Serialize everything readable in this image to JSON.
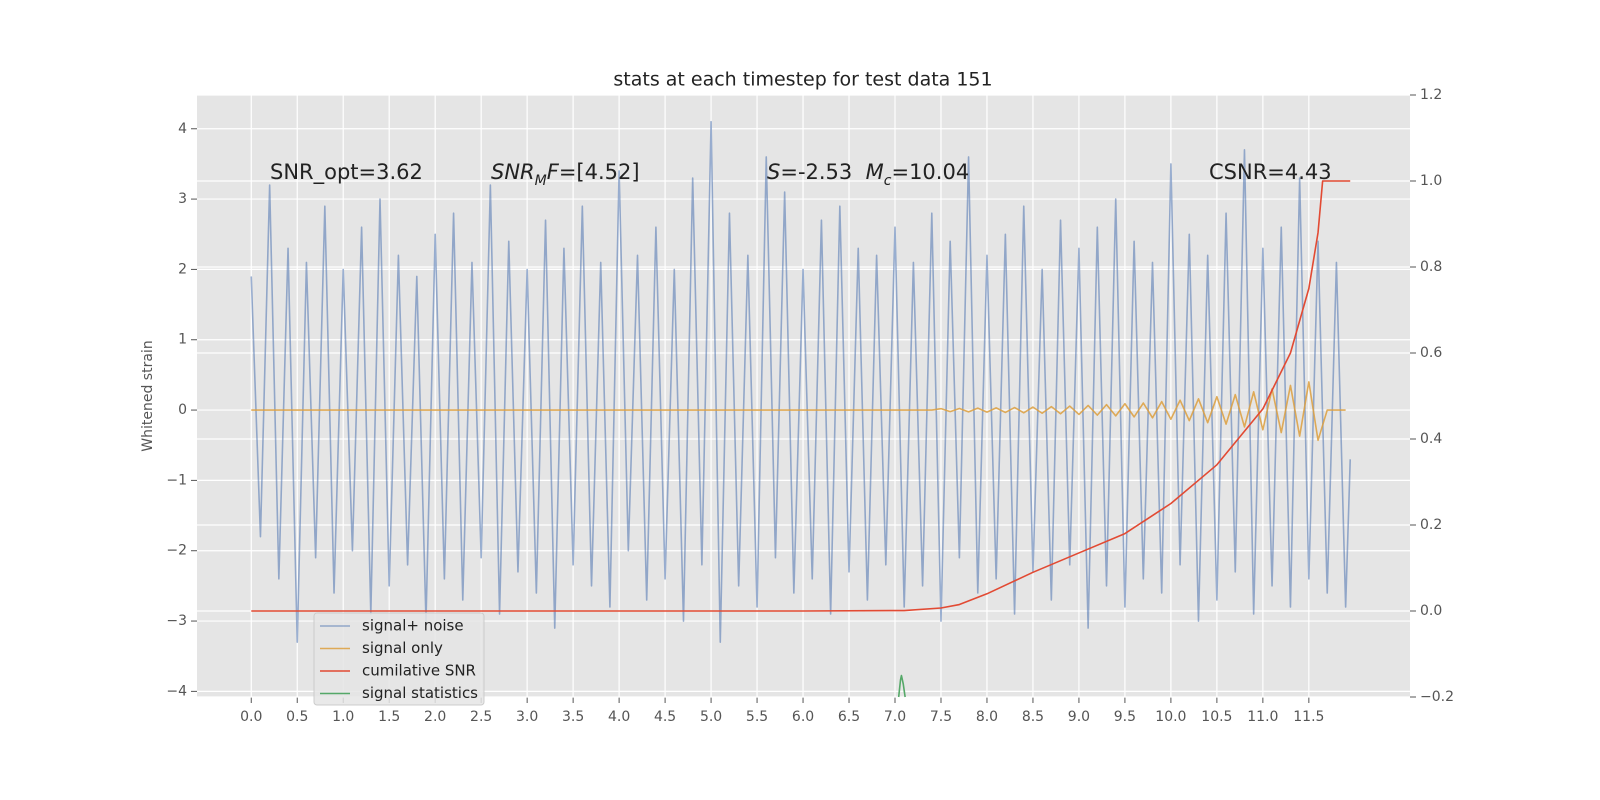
{
  "chart_data": {
    "type": "line",
    "title": "stats at each timestep for test data 151",
    "ylabel": "Whitened strain",
    "xlim": [
      -0.59,
      12.6
    ],
    "ylim": [
      -4.08,
      4.48
    ],
    "y2lim": [
      -0.2,
      1.2
    ],
    "xticks": [
      {
        "value": 0,
        "label": "0.0"
      },
      0.5,
      {
        "value": 1,
        "label": "1.0"
      },
      1.5,
      {
        "value": 2,
        "label": "2.0"
      },
      2.5,
      {
        "value": 3,
        "label": "3.0"
      },
      3.5,
      {
        "value": 4,
        "label": "4.0"
      },
      4.5,
      {
        "value": 5,
        "label": "5.0"
      },
      5.5,
      {
        "value": 6,
        "label": "6.0"
      },
      6.5,
      {
        "value": 7,
        "label": "7.0"
      },
      7.5,
      {
        "value": 8,
        "label": "8.0"
      },
      8.5,
      {
        "value": 9,
        "label": "9.0"
      },
      9.5,
      {
        "value": 10,
        "label": "10.0"
      },
      10.5,
      {
        "value": 11,
        "label": "11.0"
      },
      11.5
    ],
    "yticks": [
      {
        "value": -4,
        "label": "−4"
      },
      {
        "value": -3,
        "label": "−3"
      },
      {
        "value": -2,
        "label": "−2"
      },
      {
        "value": -1,
        "label": "−1"
      },
      0,
      1,
      2,
      3,
      4
    ],
    "y2ticks": [
      {
        "value": -0.2,
        "label": "−0.2"
      },
      {
        "value": 0,
        "label": "0.0"
      },
      0.2,
      0.4,
      0.6,
      0.8,
      {
        "value": 1,
        "label": "1.0"
      },
      1.2
    ],
    "grid": true,
    "legend": "lower left",
    "annotations": [
      {
        "parts": [
          {
            "text": "SNR_opt=3.62"
          }
        ]
      },
      {
        "parts": [
          {
            "text": "SNR",
            "style": "italic"
          },
          {
            "text": "M",
            "style": "italic-sub"
          },
          {
            "text": "F",
            "style": "italic"
          },
          {
            "text": "=[4.52]"
          }
        ]
      },
      {
        "parts": [
          {
            "text": "S",
            "style": "italic"
          },
          {
            "text": "=-2.53  "
          },
          {
            "text": "M",
            "style": "italic"
          },
          {
            "text": "c",
            "style": "italic-sub"
          },
          {
            "text": "=10.04"
          }
        ]
      },
      {
        "parts": [
          {
            "text": "CSNR=4.43"
          }
        ]
      }
    ],
    "series": [
      {
        "name": "signal+ noise",
        "color": "#4c72b0",
        "alpha": 0.55,
        "x": [
          0,
          0.1,
          0.2,
          0.3,
          0.4,
          0.5,
          0.6,
          0.7,
          0.8,
          0.9,
          1,
          1.1,
          1.2,
          1.3,
          1.4,
          1.5,
          1.6,
          1.7,
          1.8,
          1.9,
          2,
          2.1,
          2.2,
          2.3,
          2.4,
          2.5,
          2.6,
          2.7,
          2.8,
          2.9,
          3,
          3.1,
          3.2,
          3.3,
          3.4,
          3.5,
          3.6,
          3.7,
          3.8,
          3.9,
          4,
          4.1,
          4.2,
          4.3,
          4.4,
          4.5,
          4.6,
          4.7,
          4.8,
          4.9,
          5,
          5.1,
          5.2,
          5.3,
          5.4,
          5.5,
          5.6,
          5.7,
          5.8,
          5.9,
          6,
          6.1,
          6.2,
          6.3,
          6.4,
          6.5,
          6.6,
          6.7,
          6.8,
          6.9,
          7,
          7.1,
          7.2,
          7.3,
          7.4,
          7.5,
          7.6,
          7.7,
          7.8,
          7.9,
          8,
          8.1,
          8.2,
          8.3,
          8.4,
          8.5,
          8.6,
          8.7,
          8.8,
          8.9,
          9,
          9.1,
          9.2,
          9.3,
          9.4,
          9.5,
          9.6,
          9.7,
          9.8,
          9.9,
          10,
          10.1,
          10.2,
          10.3,
          10.4,
          10.5,
          10.6,
          10.7,
          10.8,
          10.9,
          11,
          11.1,
          11.2,
          11.3,
          11.4,
          11.5,
          11.6,
          11.7,
          11.8,
          11.9,
          11.95
        ],
        "values": [
          1.9,
          -1.8,
          3.2,
          -2.4,
          2.3,
          -3.3,
          2.1,
          -2.1,
          2.9,
          -2.6,
          2.0,
          -2.0,
          2.6,
          -2.9,
          3.0,
          -2.5,
          2.2,
          -2.2,
          1.9,
          -3.0,
          2.5,
          -2.4,
          2.8,
          -2.7,
          2.1,
          -2.1,
          3.2,
          -2.9,
          2.4,
          -2.3,
          2.0,
          -2.6,
          2.7,
          -3.1,
          2.3,
          -2.2,
          2.9,
          -2.5,
          2.1,
          -2.8,
          3.4,
          -2.0,
          2.2,
          -2.7,
          2.6,
          -2.4,
          2.0,
          -3.0,
          3.3,
          -2.2,
          4.1,
          -3.3,
          2.8,
          -2.5,
          2.2,
          -2.8,
          3.6,
          -2.1,
          3.1,
          -2.6,
          2.0,
          -2.4,
          2.7,
          -2.9,
          2.9,
          -2.3,
          2.3,
          -2.7,
          2.2,
          -2.2,
          2.6,
          -2.8,
          2.1,
          -2.5,
          2.8,
          -3.0,
          2.4,
          -2.1,
          3.6,
          -2.6,
          2.2,
          -2.4,
          2.5,
          -2.9,
          2.9,
          -2.3,
          2.0,
          -2.7,
          2.7,
          -2.2,
          2.3,
          -3.1,
          2.6,
          -2.5,
          3.0,
          -2.8,
          2.4,
          -2.4,
          2.1,
          -2.6,
          3.5,
          -2.2,
          2.5,
          -3.0,
          2.2,
          -2.7,
          2.8,
          -2.3,
          3.7,
          -2.9,
          2.3,
          -2.5,
          2.6,
          -2.8,
          3.3,
          -2.4,
          2.4,
          -2.6,
          2.1,
          -2.8,
          -0.7
        ]
      },
      {
        "name": "signal only",
        "color": "#dd9f3d",
        "alpha": 0.85,
        "x": [
          0,
          0.1,
          0.2,
          0.3,
          0.4,
          0.5,
          0.6,
          0.7,
          0.8,
          0.9,
          1,
          1.1,
          1.2,
          1.3,
          1.4,
          1.5,
          1.6,
          1.7,
          1.8,
          1.9,
          2,
          2.1,
          2.2,
          2.3,
          2.4,
          2.5,
          2.6,
          2.7,
          2.8,
          2.9,
          3,
          3.1,
          3.2,
          3.3,
          3.4,
          3.5,
          3.6,
          3.7,
          3.8,
          3.9,
          4,
          4.1,
          4.2,
          4.3,
          4.4,
          4.5,
          4.6,
          4.7,
          4.8,
          4.9,
          5,
          5.1,
          5.2,
          5.3,
          5.4,
          5.5,
          5.6,
          5.7,
          5.8,
          5.9,
          6,
          6.1,
          6.2,
          6.3,
          6.4,
          6.5,
          6.6,
          6.7,
          6.8,
          6.9,
          7,
          7.1,
          7.2,
          7.3,
          7.4,
          7.5,
          7.6,
          7.7,
          7.8,
          7.9,
          8,
          8.1,
          8.2,
          8.3,
          8.4,
          8.5,
          8.6,
          8.7,
          8.8,
          8.9,
          9,
          9.1,
          9.2,
          9.3,
          9.4,
          9.5,
          9.6,
          9.7,
          9.8,
          9.9,
          10,
          10.1,
          10.2,
          10.3,
          10.4,
          10.5,
          10.6,
          10.7,
          10.8,
          10.9,
          11,
          11.1,
          11.2,
          11.3,
          11.4,
          11.5,
          11.6,
          11.7,
          11.8,
          11.9
        ],
        "values": [
          0,
          0,
          0,
          0,
          0,
          0,
          0,
          0,
          0,
          0,
          0,
          0,
          0,
          0,
          0,
          0,
          0,
          0,
          0,
          0,
          0,
          0,
          0,
          0,
          0,
          0,
          0,
          0,
          0,
          0,
          0,
          0,
          0,
          0,
          0,
          0,
          0,
          0,
          0,
          0,
          0,
          0,
          0,
          0,
          0,
          0,
          0,
          0,
          0,
          0,
          0,
          0,
          0,
          0,
          0,
          0,
          0,
          0,
          0,
          0,
          0,
          0,
          0,
          0,
          0,
          0,
          0,
          0,
          0,
          0,
          0,
          0,
          0,
          0,
          0,
          0.02,
          -0.022,
          0.023,
          -0.025,
          0.027,
          -0.029,
          0.031,
          -0.034,
          0.036,
          -0.039,
          0.042,
          -0.045,
          0.049,
          -0.053,
          0.057,
          -0.062,
          0.066,
          -0.072,
          0.077,
          -0.083,
          0.09,
          -0.097,
          0.1,
          -0.11,
          0.12,
          -0.13,
          0.14,
          -0.15,
          0.16,
          -0.18,
          0.19,
          -0.2,
          0.22,
          -0.24,
          0.26,
          -0.28,
          0.3,
          -0.32,
          0.35,
          -0.37,
          0.4,
          -0.43,
          0,
          0,
          0
        ]
      },
      {
        "name": "cumilative SNR",
        "color": "#e24a33",
        "alpha": 1,
        "axis": "y2",
        "x": [
          0,
          1,
          2,
          3,
          4,
          5,
          6,
          7,
          7.1,
          7.5,
          7.7,
          8.0,
          8.5,
          9.0,
          9.5,
          10.0,
          10.5,
          11.0,
          11.3,
          11.5,
          11.6,
          11.65,
          11.95
        ],
        "values": [
          0,
          0,
          0,
          0,
          0,
          0,
          0,
          0.001,
          0.001,
          0.007,
          0.015,
          0.04,
          0.09,
          0.135,
          0.18,
          0.25,
          0.34,
          0.47,
          0.6,
          0.75,
          0.88,
          1.0,
          1.0
        ]
      },
      {
        "name": "signal statistics",
        "color": "#55a868",
        "alpha": 1,
        "axis": "y2",
        "x": [
          7.04,
          7.06,
          7.07,
          7.09,
          7.11
        ],
        "values": [
          -0.2,
          -0.16,
          -0.15,
          -0.17,
          -0.2
        ]
      }
    ]
  }
}
